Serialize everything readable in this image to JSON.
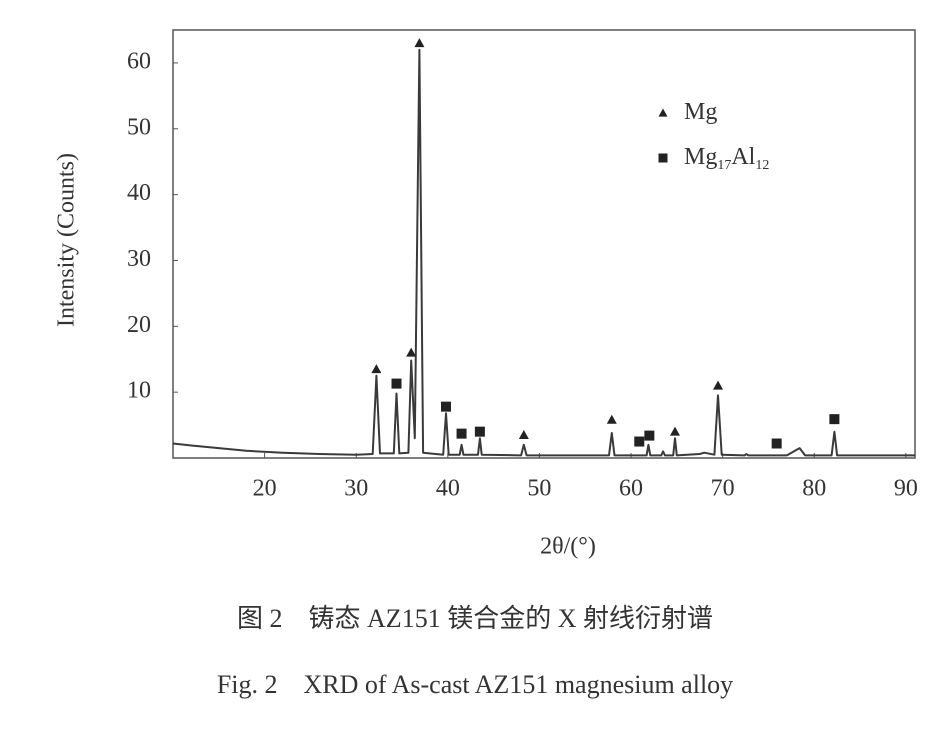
{
  "chart_data": {
    "type": "line",
    "x_label": "2θ/(°)",
    "y_label": "Intensity (Counts)",
    "xlim": [
      10,
      91
    ],
    "xticks": [
      20,
      30,
      40,
      50,
      60,
      70,
      80,
      90
    ],
    "ylim": [
      0,
      65
    ],
    "yticks": [
      10,
      20,
      30,
      40,
      50,
      60
    ],
    "color": "#3a3a3a",
    "x": [
      10,
      12,
      15,
      18,
      22,
      26,
      30,
      31.8,
      32.2,
      32.6,
      34.1,
      34.4,
      34.7,
      35.7,
      36.0,
      36.4,
      36.9,
      37.3,
      39.5,
      39.8,
      40.1,
      41.3,
      41.5,
      41.7,
      43.3,
      43.5,
      43.7,
      48.0,
      48.3,
      48.6,
      57.6,
      57.9,
      58.2,
      61.7,
      61.9,
      62.1,
      63.3,
      63.5,
      63.7,
      64.6,
      64.8,
      65.0,
      67.5,
      68.0,
      69.1,
      69.5,
      69.9,
      72.4,
      72.6,
      72.8,
      77.0,
      78.4,
      79.0,
      81.9,
      82.2,
      82.5,
      91
    ],
    "values": [
      2.2,
      1.9,
      1.5,
      1.1,
      0.8,
      0.6,
      0.5,
      0.6,
      12.5,
      0.7,
      0.7,
      9.8,
      0.7,
      0.8,
      14.8,
      3,
      62,
      0.8,
      0.5,
      6.8,
      0.5,
      0.5,
      2,
      0.5,
      0.5,
      3,
      0.5,
      0.4,
      2,
      0.4,
      0.4,
      3.8,
      0.4,
      0.4,
      2,
      0.4,
      0.4,
      1,
      0.4,
      0.4,
      3,
      0.4,
      0.6,
      0.8,
      0.5,
      9.5,
      0.5,
      0.4,
      0.6,
      0.4,
      0.4,
      1.5,
      0.4,
      0.4,
      4,
      0.4,
      0.4
    ],
    "markers": [
      {
        "name": "Mg",
        "marker": "triangle",
        "color": "#222222",
        "x": [
          32.2,
          36.0,
          36.9,
          48.3,
          57.9,
          64.8,
          69.5
        ],
        "values": [
          13.5,
          16,
          63,
          3.5,
          5.8,
          4,
          11
        ]
      },
      {
        "name": "Mg17Al12",
        "marker": "square",
        "color": "#222222",
        "x": [
          34.4,
          39.8,
          41.5,
          43.5,
          60.9,
          62.0,
          75.9,
          82.2
        ],
        "values": [
          11.3,
          7.8,
          3.7,
          4,
          2.5,
          3.4,
          2.2,
          5.9
        ]
      }
    ]
  },
  "caption": {
    "zh": "图 2　铸态 AZ151 镁合金的 X 射线衍射谱",
    "en": "Fig. 2　XRD of As-cast AZ151 magnesium alloy"
  }
}
